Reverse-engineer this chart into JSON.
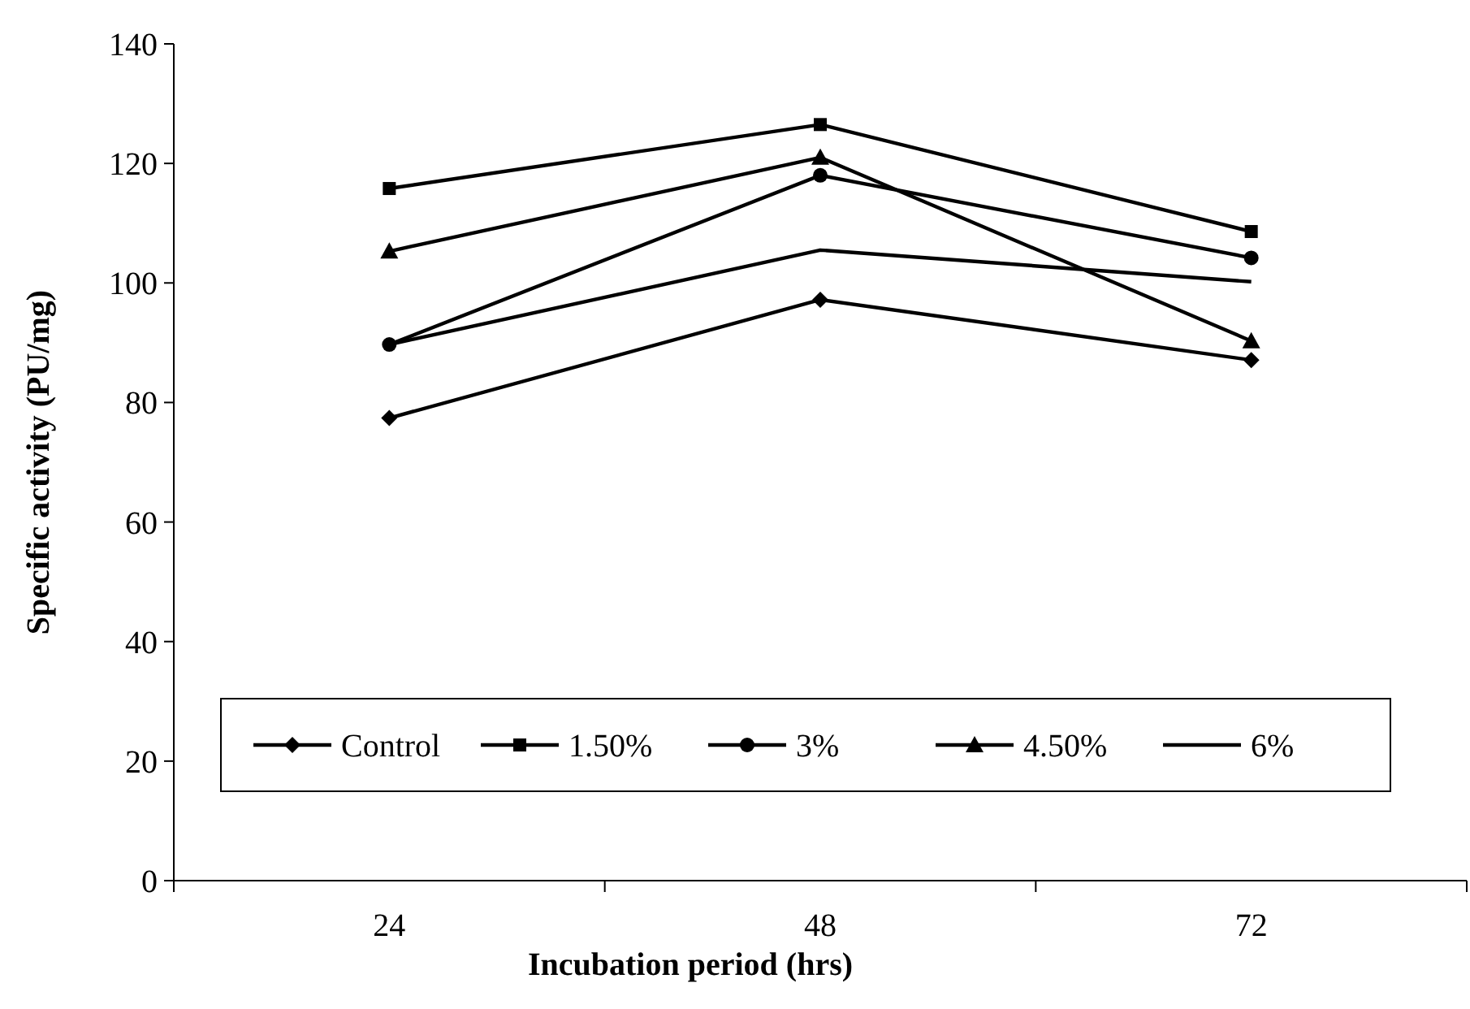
{
  "chart_data": {
    "type": "line",
    "xlabel": "Incubation period (hrs)",
    "ylabel": "Specific activity (PU/mg)",
    "categories": [
      "24",
      "48",
      "72"
    ],
    "ylim": [
      0,
      140
    ],
    "yticks": [
      0,
      20,
      40,
      60,
      80,
      100,
      120,
      140
    ],
    "legend": "bottom",
    "grid": false,
    "series": [
      {
        "name": "Control",
        "color": "#000000",
        "marker": "diamond",
        "values": [
          77.4,
          97.2,
          87.1
        ]
      },
      {
        "name": "1.50%",
        "color": "#000000",
        "marker": "square",
        "values": [
          115.8,
          126.5,
          108.6
        ]
      },
      {
        "name": "3%",
        "color": "#000000",
        "marker": "circle",
        "values": [
          89.7,
          118,
          104.2
        ]
      },
      {
        "name": "4.50%",
        "color": "#000000",
        "marker": "triangle",
        "values": [
          105.3,
          121,
          90.3
        ]
      },
      {
        "name": "6%",
        "color": "#000000",
        "marker": "none",
        "values": [
          89.7,
          105.5,
          100.2
        ]
      }
    ]
  }
}
